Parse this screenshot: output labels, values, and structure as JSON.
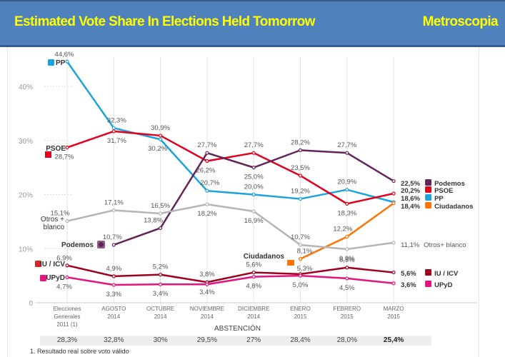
{
  "header": {
    "title": "Estimated Vote Share In Elections Held Tomorrow",
    "source": "Metroscopia",
    "background_color": "#4f81bd",
    "text_color": "#ffff00"
  },
  "chart_data": {
    "type": "line",
    "title": "Estimated Vote Share In Elections Held Tomorrow",
    "source": "Metroscopia",
    "xlabel": "",
    "ylabel": "",
    "ylim": [
      0,
      46
    ],
    "yticks": [
      0,
      10,
      20,
      30,
      40
    ],
    "ytick_labels": [
      "0",
      "10%",
      "20%",
      "30%",
      "40%"
    ],
    "grid": "vertical lines at each category",
    "categories": [
      [
        "Elecciones",
        "Generales",
        "2011 (1)"
      ],
      [
        "AGOSTO",
        "2014"
      ],
      [
        "OCTUBRE",
        "2014"
      ],
      [
        "NOVIEMBRE",
        "2014"
      ],
      [
        "DICIEMBRE",
        "2014"
      ],
      [
        "ENERO",
        "2015"
      ],
      [
        "FEBRERO",
        "2015"
      ],
      [
        "MARZO",
        "2015"
      ]
    ],
    "series": [
      {
        "name": "PP",
        "color": "#1aa3dc",
        "values": [
          44.6,
          32.3,
          30.2,
          20.7,
          20.0,
          19.2,
          20.9,
          18.6
        ],
        "labels": [
          "44,6%",
          "32,3%",
          "30,2%",
          "20,7%",
          "20,0%",
          "19,2%",
          "20,9%",
          "18,6%"
        ],
        "start_label": "PP",
        "end_label": "PP"
      },
      {
        "name": "PSOE",
        "color": "#e4001b",
        "values": [
          28.7,
          31.7,
          30.9,
          26.2,
          27.7,
          23.5,
          18.3,
          20.2
        ],
        "labels": [
          "28,7%",
          "31,7%",
          "30,9%",
          "26,2%",
          "27,7%",
          "23,5%",
          "18,3%",
          "20,2%"
        ],
        "start_label": "PSOE",
        "end_label": "PSOE"
      },
      {
        "name": "Podemos",
        "color": "#632459",
        "values": [
          null,
          10.7,
          13.8,
          27.7,
          25.0,
          28.2,
          27.7,
          22.5
        ],
        "labels": [
          null,
          "10,7%",
          "13,8%",
          "27,7%",
          "25,0%",
          "28,2%",
          "27,7%",
          "22,5%"
        ],
        "start_label": "Podemos",
        "end_label": "Podemos"
      },
      {
        "name": "Ciudadanos",
        "color": "#ff7300",
        "values": [
          null,
          null,
          null,
          null,
          null,
          8.1,
          12.2,
          18.4
        ],
        "labels": [
          null,
          null,
          null,
          null,
          null,
          "8,1%",
          "12,2%",
          "18,4%"
        ],
        "start_label": "Ciudadanos",
        "end_label": "Ciudadanos"
      },
      {
        "name": "Otros + blanco",
        "color": "#b5b5b5",
        "values": [
          15.1,
          17.1,
          16.5,
          18.2,
          16.9,
          10.7,
          9.9,
          11.1
        ],
        "labels": [
          "15,1%",
          "17,1%",
          "16,5%",
          "18,2%",
          "16,9%",
          "10,7%",
          "9,9%",
          "11,1%"
        ],
        "start_label": "Otros + blanco",
        "end_label": "Otros+ blanco"
      },
      {
        "name": "IU / ICV",
        "color": "#a0001e",
        "values": [
          6.9,
          4.9,
          5.2,
          3.8,
          5.6,
          5.3,
          6.5,
          5.6
        ],
        "labels": [
          "6,9%",
          "4,9%",
          "5,2%",
          "3,8%",
          "5,6%",
          "5,3%",
          "6,5%",
          "5,6%"
        ],
        "start_label": "IU / ICV",
        "end_label": "IU / ICV"
      },
      {
        "name": "UPyD",
        "color": "#e5137d",
        "values": [
          4.7,
          3.3,
          3.4,
          3.4,
          4.8,
          5.0,
          4.5,
          3.6
        ],
        "labels": [
          "4,7%",
          "3,3%",
          "3,4%",
          "3,4%",
          "4,8%",
          "5,0%",
          "4,5%",
          "3,6%"
        ],
        "start_label": "UPyD",
        "end_label": "UPyD"
      }
    ],
    "abstention": {
      "title": "ABSTENCIÓN",
      "values": [
        28.3,
        32.8,
        30,
        29.5,
        27,
        28.4,
        28.0,
        25.4
      ],
      "labels": [
        "28,3%",
        "32,8%",
        "30%",
        "29,5%",
        "27%",
        "28,4%",
        "28,0%",
        "25,4%"
      ]
    },
    "footnote": "1. Resultado real sobre voto válido"
  }
}
